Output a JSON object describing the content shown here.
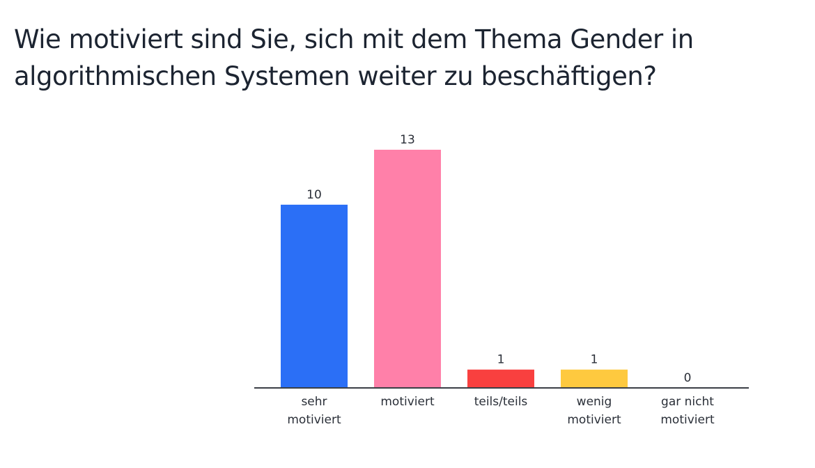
{
  "page": {
    "title": "Wie motiviert sind Sie, sich mit dem Thema Gender in algorithmischen Systemen weiter zu beschäftigen?"
  },
  "chart_data": {
    "type": "bar",
    "title": "Wie motiviert sind Sie, sich mit dem Thema Gender in algorithmischen Systemen weiter zu beschäftigen?",
    "xlabel": "",
    "ylabel": "",
    "grid": false,
    "categories": [
      [
        "sehr",
        "motiviert"
      ],
      [
        "motiviert"
      ],
      [
        "teils/teils"
      ],
      [
        "wenig",
        "motiviert"
      ],
      [
        "gar nicht",
        "motiviert"
      ]
    ],
    "values": [
      10,
      13,
      1,
      1,
      0
    ],
    "colors": [
      "#2b6ff6",
      "#ff80a9",
      "#f9403f",
      "#fec93f",
      "#9aa0aa"
    ],
    "ylim": [
      0,
      13
    ]
  }
}
